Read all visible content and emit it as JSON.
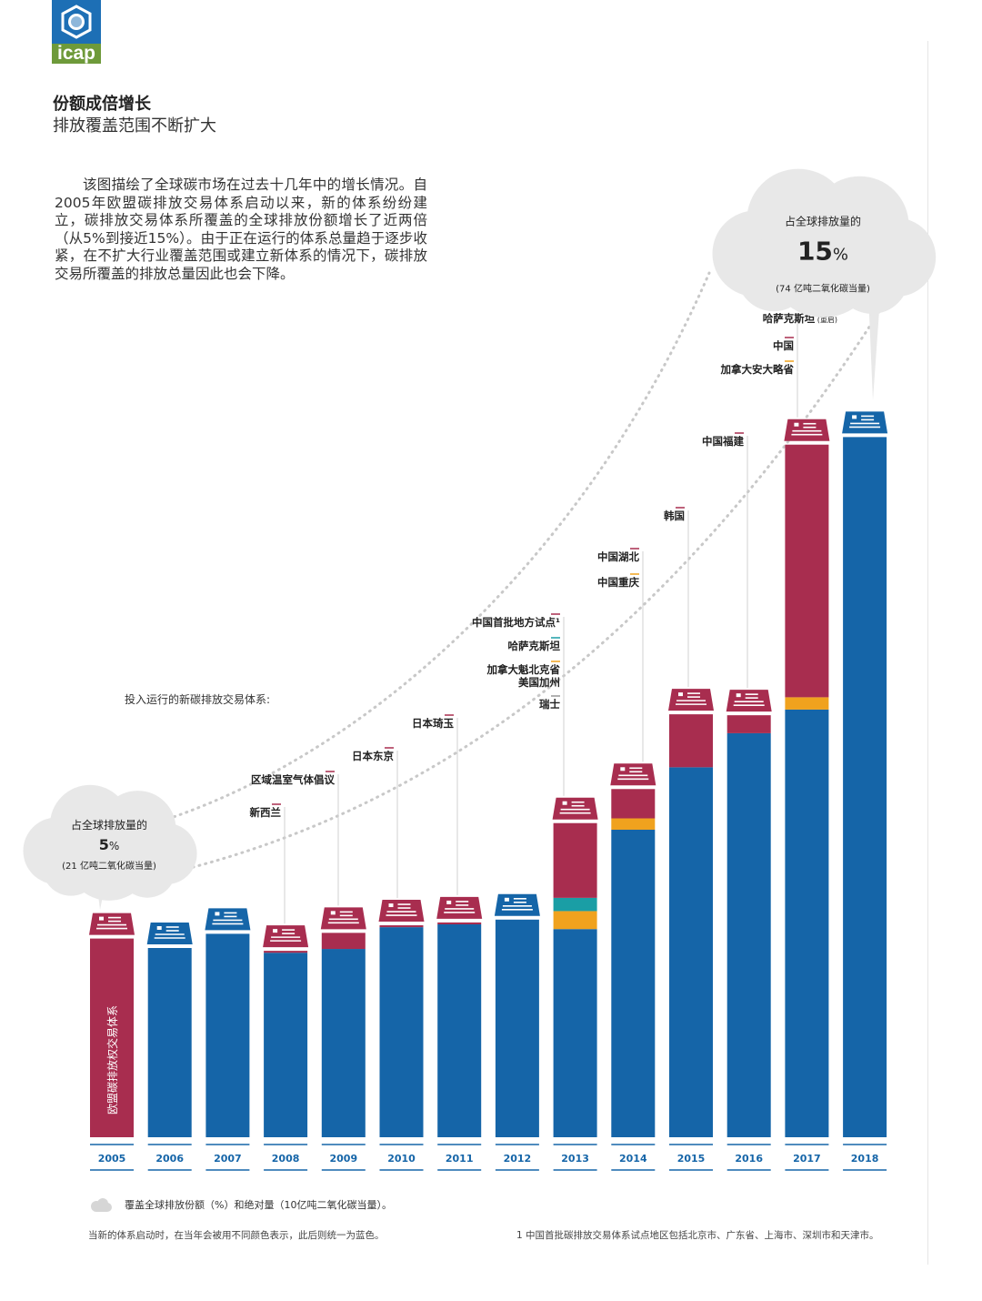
{
  "logo": {
    "text": "icap",
    "colors": {
      "top": "#1d6fb5",
      "bottom": "#6e9a3a"
    }
  },
  "header": {
    "title": "份额成倍增长",
    "subtitle": "排放覆盖范围不断扩大",
    "description": "该图描绘了全球碳市场在过去十几年中的增长情况。自2005年欧盟碳排放交易体系启动以来，新的体系纷纷建立，碳排放交易体系所覆盖的全球排放份额增长了近两倍（从5%到接近15%）。由于正在运行的体系总量趋于逐步收紧，在不扩大行业覆盖范围或建立新体系的情况下，碳排放交易所覆盖的排放总量因此也会下降。"
  },
  "chart_data": {
    "type": "bar",
    "stacked": true,
    "categories": [
      "2005",
      "2006",
      "2007",
      "2008",
      "2009",
      "2010",
      "2011",
      "2012",
      "2013",
      "2014",
      "2015",
      "2016",
      "2017",
      "2018"
    ],
    "series_colors": {
      "existing": "#1565a8",
      "new_red": "#a82d4f",
      "new_teal": "#1a9ea5",
      "new_orange": "#f0a21e"
    },
    "bars": [
      {
        "year": "2005",
        "segments": [
          {
            "color": "#a82d4f",
            "value": 2.1
          }
        ]
      },
      {
        "year": "2006",
        "segments": [
          {
            "color": "#1565a8",
            "value": 2.0
          }
        ]
      },
      {
        "year": "2007",
        "segments": [
          {
            "color": "#1565a8",
            "value": 2.15
          }
        ]
      },
      {
        "year": "2008",
        "segments": [
          {
            "color": "#1565a8",
            "value": 1.95
          },
          {
            "color": "#a82d4f",
            "value": 0.02
          }
        ]
      },
      {
        "year": "2009",
        "segments": [
          {
            "color": "#1565a8",
            "value": 1.99
          },
          {
            "color": "#a82d4f",
            "value": 0.17
          }
        ]
      },
      {
        "year": "2010",
        "segments": [
          {
            "color": "#1565a8",
            "value": 2.22
          },
          {
            "color": "#a82d4f",
            "value": 0.02
          }
        ]
      },
      {
        "year": "2011",
        "segments": [
          {
            "color": "#1565a8",
            "value": 2.25
          },
          {
            "color": "#a82d4f",
            "value": 0.02
          }
        ]
      },
      {
        "year": "2012",
        "segments": [
          {
            "color": "#1565a8",
            "value": 2.3
          }
        ]
      },
      {
        "year": "2013",
        "segments": [
          {
            "color": "#1565a8",
            "value": 2.2
          },
          {
            "color": "#f0a21e",
            "value": 0.19
          },
          {
            "color": "#1a9ea5",
            "value": 0.14
          },
          {
            "color": "#a82d4f",
            "value": 0.79
          }
        ]
      },
      {
        "year": "2014",
        "segments": [
          {
            "color": "#1565a8",
            "value": 3.25
          },
          {
            "color": "#f0a21e",
            "value": 0.12
          },
          {
            "color": "#a82d4f",
            "value": 0.31
          }
        ]
      },
      {
        "year": "2015",
        "segments": [
          {
            "color": "#1565a8",
            "value": 3.91
          },
          {
            "color": "#a82d4f",
            "value": 0.56
          }
        ]
      },
      {
        "year": "2016",
        "segments": [
          {
            "color": "#1565a8",
            "value": 4.27
          },
          {
            "color": "#a82d4f",
            "value": 0.19
          }
        ]
      },
      {
        "year": "2017",
        "segments": [
          {
            "color": "#1565a8",
            "value": 4.52
          },
          {
            "color": "#f0a21e",
            "value": 0.13
          },
          {
            "color": "#a82d4f",
            "value": 2.67
          }
        ]
      },
      {
        "year": "2018",
        "segments": [
          {
            "color": "#1565a8",
            "value": 7.4
          }
        ]
      }
    ],
    "ylim": [
      0,
      7.6
    ],
    "bar_inner_label": "欧盟碳排放权交易体系",
    "intro_label": "投入运行的新碳排放交易体系:",
    "new_systems": [
      {
        "year": "2008",
        "items": [
          {
            "name": "新西兰",
            "color": "#a82d4f"
          }
        ]
      },
      {
        "year": "2009",
        "items": [
          {
            "name": "区域温室气体倡议",
            "color": "#a82d4f"
          }
        ]
      },
      {
        "year": "2010",
        "items": [
          {
            "name": "日本东京",
            "color": "#a82d4f"
          }
        ]
      },
      {
        "year": "2011",
        "items": [
          {
            "name": "日本琦玉",
            "color": "#a82d4f"
          }
        ]
      },
      {
        "year": "2013",
        "items": [
          {
            "name": "中国首批地方试点¹",
            "color": "#a82d4f"
          },
          {
            "name": "哈萨克斯坦",
            "color": "#1a9ea5"
          },
          {
            "name": "加拿大魁北克省",
            "color": "#f0a21e"
          },
          {
            "name": "美国加州",
            "color": ""
          },
          {
            "name": "瑞士",
            "color": "#999999"
          }
        ]
      },
      {
        "year": "2014",
        "items": [
          {
            "name": "中国湖北",
            "color": "#a82d4f"
          },
          {
            "name": "中国重庆",
            "color": "#f0a21e"
          }
        ]
      },
      {
        "year": "2015",
        "items": [
          {
            "name": "韩国",
            "color": "#a82d4f"
          }
        ]
      },
      {
        "year": "2016",
        "items": [
          {
            "name": "中国福建",
            "color": "#a82d4f"
          }
        ]
      },
      {
        "year": "2017",
        "items": [
          {
            "name": "哈萨克斯坦",
            "note": "(重启)",
            "color": ""
          },
          {
            "name": "中国",
            "color": "#a82d4f"
          },
          {
            "name": "加拿大安大略省",
            "color": "#f0a21e"
          }
        ]
      }
    ],
    "annotations": [
      {
        "year": "2005",
        "line1": "占全球排放量的",
        "value": "5",
        "unit": "%",
        "detail": "(21 亿吨二氧化碳当量)"
      },
      {
        "year": "2018",
        "line1": "占全球排放量的",
        "value": "15",
        "unit": "%",
        "detail": "(74 亿吨二氧化碳当量)"
      }
    ]
  },
  "footer": {
    "legend": "覆盖全球排放份额（%）和绝对量（10亿吨二氧化碳当量）。",
    "note": "当新的体系启动时，在当年会被用不同颜色表示，此后则统一为蓝色。",
    "footnote": "1  中国首批碳排放交易体系试点地区包括北京市、广东省、上海市、深圳市和天津市。"
  }
}
